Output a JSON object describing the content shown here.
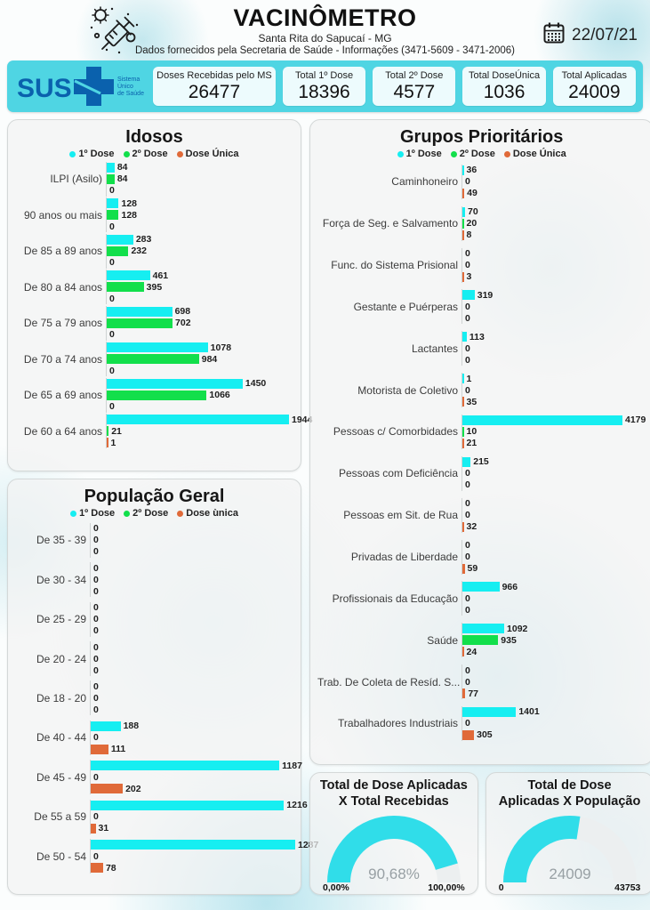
{
  "header": {
    "title": "VACINÔMETRO",
    "subtitle1": "Santa Rita do Sapucaí - MG",
    "subtitle2": "Dados fornecidos pela Secretaria de Saúde - Informações (3471-5609 - 3471-2006)",
    "date": "22/07/21"
  },
  "sus": {
    "abbr": "SUS",
    "tagline_lines": [
      "Sistema",
      "Único",
      "de Saúde"
    ]
  },
  "colors": {
    "dose1": "#16eef1",
    "dose2": "#12df4b",
    "dose_unica": "#e06a39",
    "bar_accent": "#4fd5e3",
    "gauge": "#30dde9",
    "sus_blue": "#0a61ad"
  },
  "stats": [
    {
      "label": "Doses Recebidas pelo MS",
      "value": "26477"
    },
    {
      "label": "Total 1º Dose",
      "value": "18396"
    },
    {
      "label": "Total 2º Dose",
      "value": "4577"
    },
    {
      "label": "Total DoseÚnica",
      "value": "1036"
    },
    {
      "label": "Total Aplicadas",
      "value": "24009"
    }
  ],
  "chart_data": [
    {
      "type": "bar",
      "title": "Idosos",
      "legend_position": "top",
      "grid": false,
      "legend": [
        {
          "label": "1º Dose",
          "color": "#16eef1"
        },
        {
          "label": "2º Dose",
          "color": "#12df4b"
        },
        {
          "label": "Dose Única",
          "color": "#e06a39"
        }
      ],
      "categories": [
        "ILPI (Asilo)",
        "90 anos ou mais",
        "De 85 a 89 anos",
        "De 80 a 84 anos",
        "De 75 a 79 anos",
        "De 70 a 74 anos",
        "De 65 a 69 anos",
        "De 60 a 64 anos"
      ],
      "series": [
        {
          "name": "1º Dose",
          "color": "#16eef1",
          "values": [
            84,
            128,
            283,
            461,
            698,
            1078,
            1450,
            1944
          ]
        },
        {
          "name": "2º Dose",
          "color": "#12df4b",
          "values": [
            84,
            128,
            232,
            395,
            702,
            984,
            1066,
            21
          ]
        },
        {
          "name": "Dose Única",
          "color": "#e06a39",
          "values": [
            0,
            0,
            0,
            0,
            0,
            0,
            0,
            1
          ]
        }
      ]
    },
    {
      "type": "bar",
      "title": "População Geral",
      "legend_position": "top",
      "grid": false,
      "legend": [
        {
          "label": "1º Dose",
          "color": "#16eef1"
        },
        {
          "label": "2º Dose",
          "color": "#12df4b"
        },
        {
          "label": "Dose ùnica",
          "color": "#e06a39"
        }
      ],
      "categories": [
        "De 35 - 39",
        "De 30 - 34",
        "De 25 - 29",
        "De 20 - 24",
        "De 18 - 20",
        "De 40 - 44",
        "De 45 - 49",
        "De 55 a 59",
        "De 50 - 54"
      ],
      "series": [
        {
          "name": "1º Dose",
          "color": "#16eef1",
          "values": [
            0,
            0,
            0,
            0,
            0,
            188,
            1187,
            1216,
            1287
          ]
        },
        {
          "name": "2º Dose",
          "color": "#12df4b",
          "values": [
            0,
            0,
            0,
            0,
            0,
            0,
            0,
            0,
            0
          ]
        },
        {
          "name": "Dose ùnica",
          "color": "#e06a39",
          "values": [
            0,
            0,
            0,
            0,
            0,
            111,
            202,
            31,
            78
          ]
        }
      ]
    },
    {
      "type": "bar",
      "title": "Grupos Prioritários",
      "legend_position": "top",
      "grid": false,
      "legend": [
        {
          "label": "1º Dose",
          "color": "#16eef1"
        },
        {
          "label": "2º Dose",
          "color": "#12df4b"
        },
        {
          "label": "Dose Única",
          "color": "#e06a39"
        }
      ],
      "categories": [
        "Caminhoneiro",
        "Força de Seg. e Salvamento",
        "Func. do Sistema Prisional",
        "Gestante e Puérperas",
        "Lactantes",
        "Motorista de Coletivo",
        "Pessoas c/ Comorbidades",
        "Pessoas com Deficiência",
        "Pessoas em Sit. de Rua",
        "Privadas de Liberdade",
        "Profissionais da Educação",
        "Saúde",
        "Trab. De Coleta de Resíd. S...",
        "Trabalhadores Industriais"
      ],
      "series": [
        {
          "name": "1º Dose",
          "color": "#16eef1",
          "values": [
            36,
            70,
            0,
            319,
            113,
            1,
            4179,
            215,
            0,
            0,
            966,
            1092,
            0,
            1401
          ]
        },
        {
          "name": "2º Dose",
          "color": "#12df4b",
          "values": [
            0,
            20,
            0,
            0,
            0,
            0,
            10,
            0,
            0,
            0,
            0,
            935,
            0,
            0
          ]
        },
        {
          "name": "Dose Única",
          "color": "#e06a39",
          "values": [
            49,
            8,
            3,
            0,
            0,
            35,
            21,
            0,
            32,
            59,
            0,
            24,
            77,
            305
          ]
        }
      ]
    },
    {
      "type": "gauge",
      "title_lines": [
        "Total de Dose Aplicadas",
        "X Total Recebidas"
      ],
      "value": 90.68,
      "min": 0,
      "max": 100,
      "value_label": "90,68%",
      "min_label": "0,00%",
      "max_label": "100,00%",
      "arc_color": "#30dde9"
    },
    {
      "type": "gauge",
      "title_lines": [
        "Total de Dose",
        "Aplicadas X População"
      ],
      "value": 24009,
      "min": 0,
      "max": 43753,
      "value_label": "24009",
      "min_label": "0",
      "max_label": "43753",
      "arc_color": "#30dde9"
    }
  ]
}
